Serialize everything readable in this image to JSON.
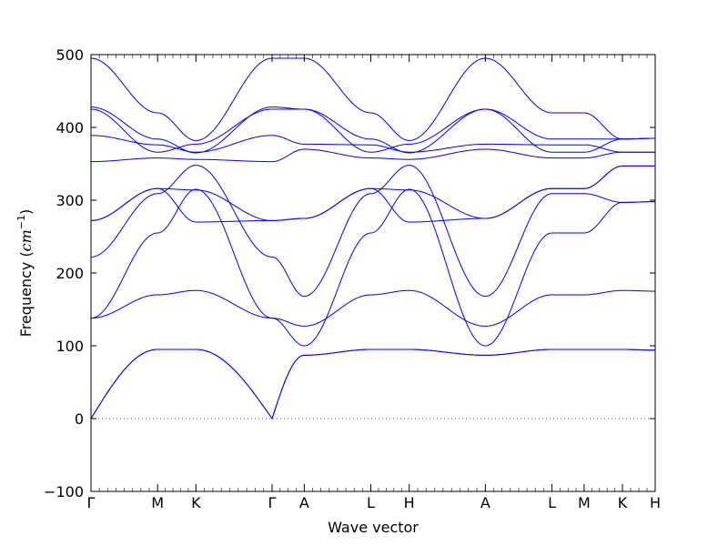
{
  "chart_data": {
    "type": "line",
    "title": "",
    "xlabel": "Wave vector",
    "ylabel_prefix": "Frequency (",
    "ylabel_unit_base": "cm",
    "ylabel_unit_exp": "−1",
    "ylabel_suffix": ")",
    "ylim": [
      -100,
      500
    ],
    "yticks": [
      -100,
      0,
      100,
      200,
      300,
      400,
      500
    ],
    "grid": false,
    "legend": "none",
    "zero_line": true,
    "colors": {
      "bands": "#0000ff",
      "zero_line": "#555555",
      "axes": "#000000"
    },
    "high_symmetry_points": [
      {
        "label": "Γ",
        "x": 0.0
      },
      {
        "label": "M",
        "x": 0.118
      },
      {
        "label": "K",
        "x": 0.186
      },
      {
        "label": "Γ",
        "x": 0.321
      },
      {
        "label": "A",
        "x": 0.378
      },
      {
        "label": "L",
        "x": 0.496
      },
      {
        "label": "H",
        "x": 0.564
      },
      {
        "label": "A",
        "x": 0.699
      },
      {
        "label": "L",
        "x": 0.817
      },
      {
        "label": "M",
        "x": 0.874
      },
      {
        "label": "K",
        "x": 0.942
      },
      {
        "label": "H",
        "x": 1.0
      }
    ],
    "series": [
      {
        "values": [
          0,
          95,
          95,
          0,
          87,
          95,
          95,
          87,
          95,
          95,
          95,
          94
        ]
      },
      {
        "values": [
          0,
          95,
          95,
          0,
          87,
          95,
          95,
          87,
          95,
          95,
          95,
          94
        ]
      },
      {
        "values": [
          138,
          170,
          176,
          138,
          127,
          170,
          176,
          127,
          170,
          170,
          176,
          175
        ]
      },
      {
        "values": [
          138,
          255,
          315,
          138,
          100,
          255,
          315,
          100,
          255,
          255,
          297,
          298
        ]
      },
      {
        "values": [
          222,
          309,
          348,
          222,
          168,
          309,
          348,
          168,
          309,
          309,
          297,
          298
        ]
      },
      {
        "values": [
          272,
          316,
          270,
          272,
          275,
          316,
          270,
          275,
          316,
          316,
          347,
          347
        ]
      },
      {
        "values": [
          272,
          316,
          314,
          272,
          275,
          316,
          314,
          275,
          316,
          316,
          347,
          347
        ]
      },
      {
        "values": [
          353,
          358,
          356,
          353,
          370,
          358,
          356,
          370,
          358,
          358,
          366,
          366
        ]
      },
      {
        "values": [
          389,
          376,
          366,
          389,
          377,
          376,
          366,
          377,
          376,
          376,
          366,
          366
        ]
      },
      {
        "values": [
          425,
          366,
          377,
          425,
          425,
          366,
          377,
          425,
          366,
          366,
          384,
          385
        ]
      },
      {
        "values": [
          428,
          384,
          365,
          428,
          425,
          384,
          365,
          425,
          384,
          384,
          384,
          385
        ]
      },
      {
        "values": [
          495,
          420,
          382,
          495,
          495,
          420,
          382,
          495,
          420,
          420,
          384,
          385
        ]
      }
    ]
  }
}
